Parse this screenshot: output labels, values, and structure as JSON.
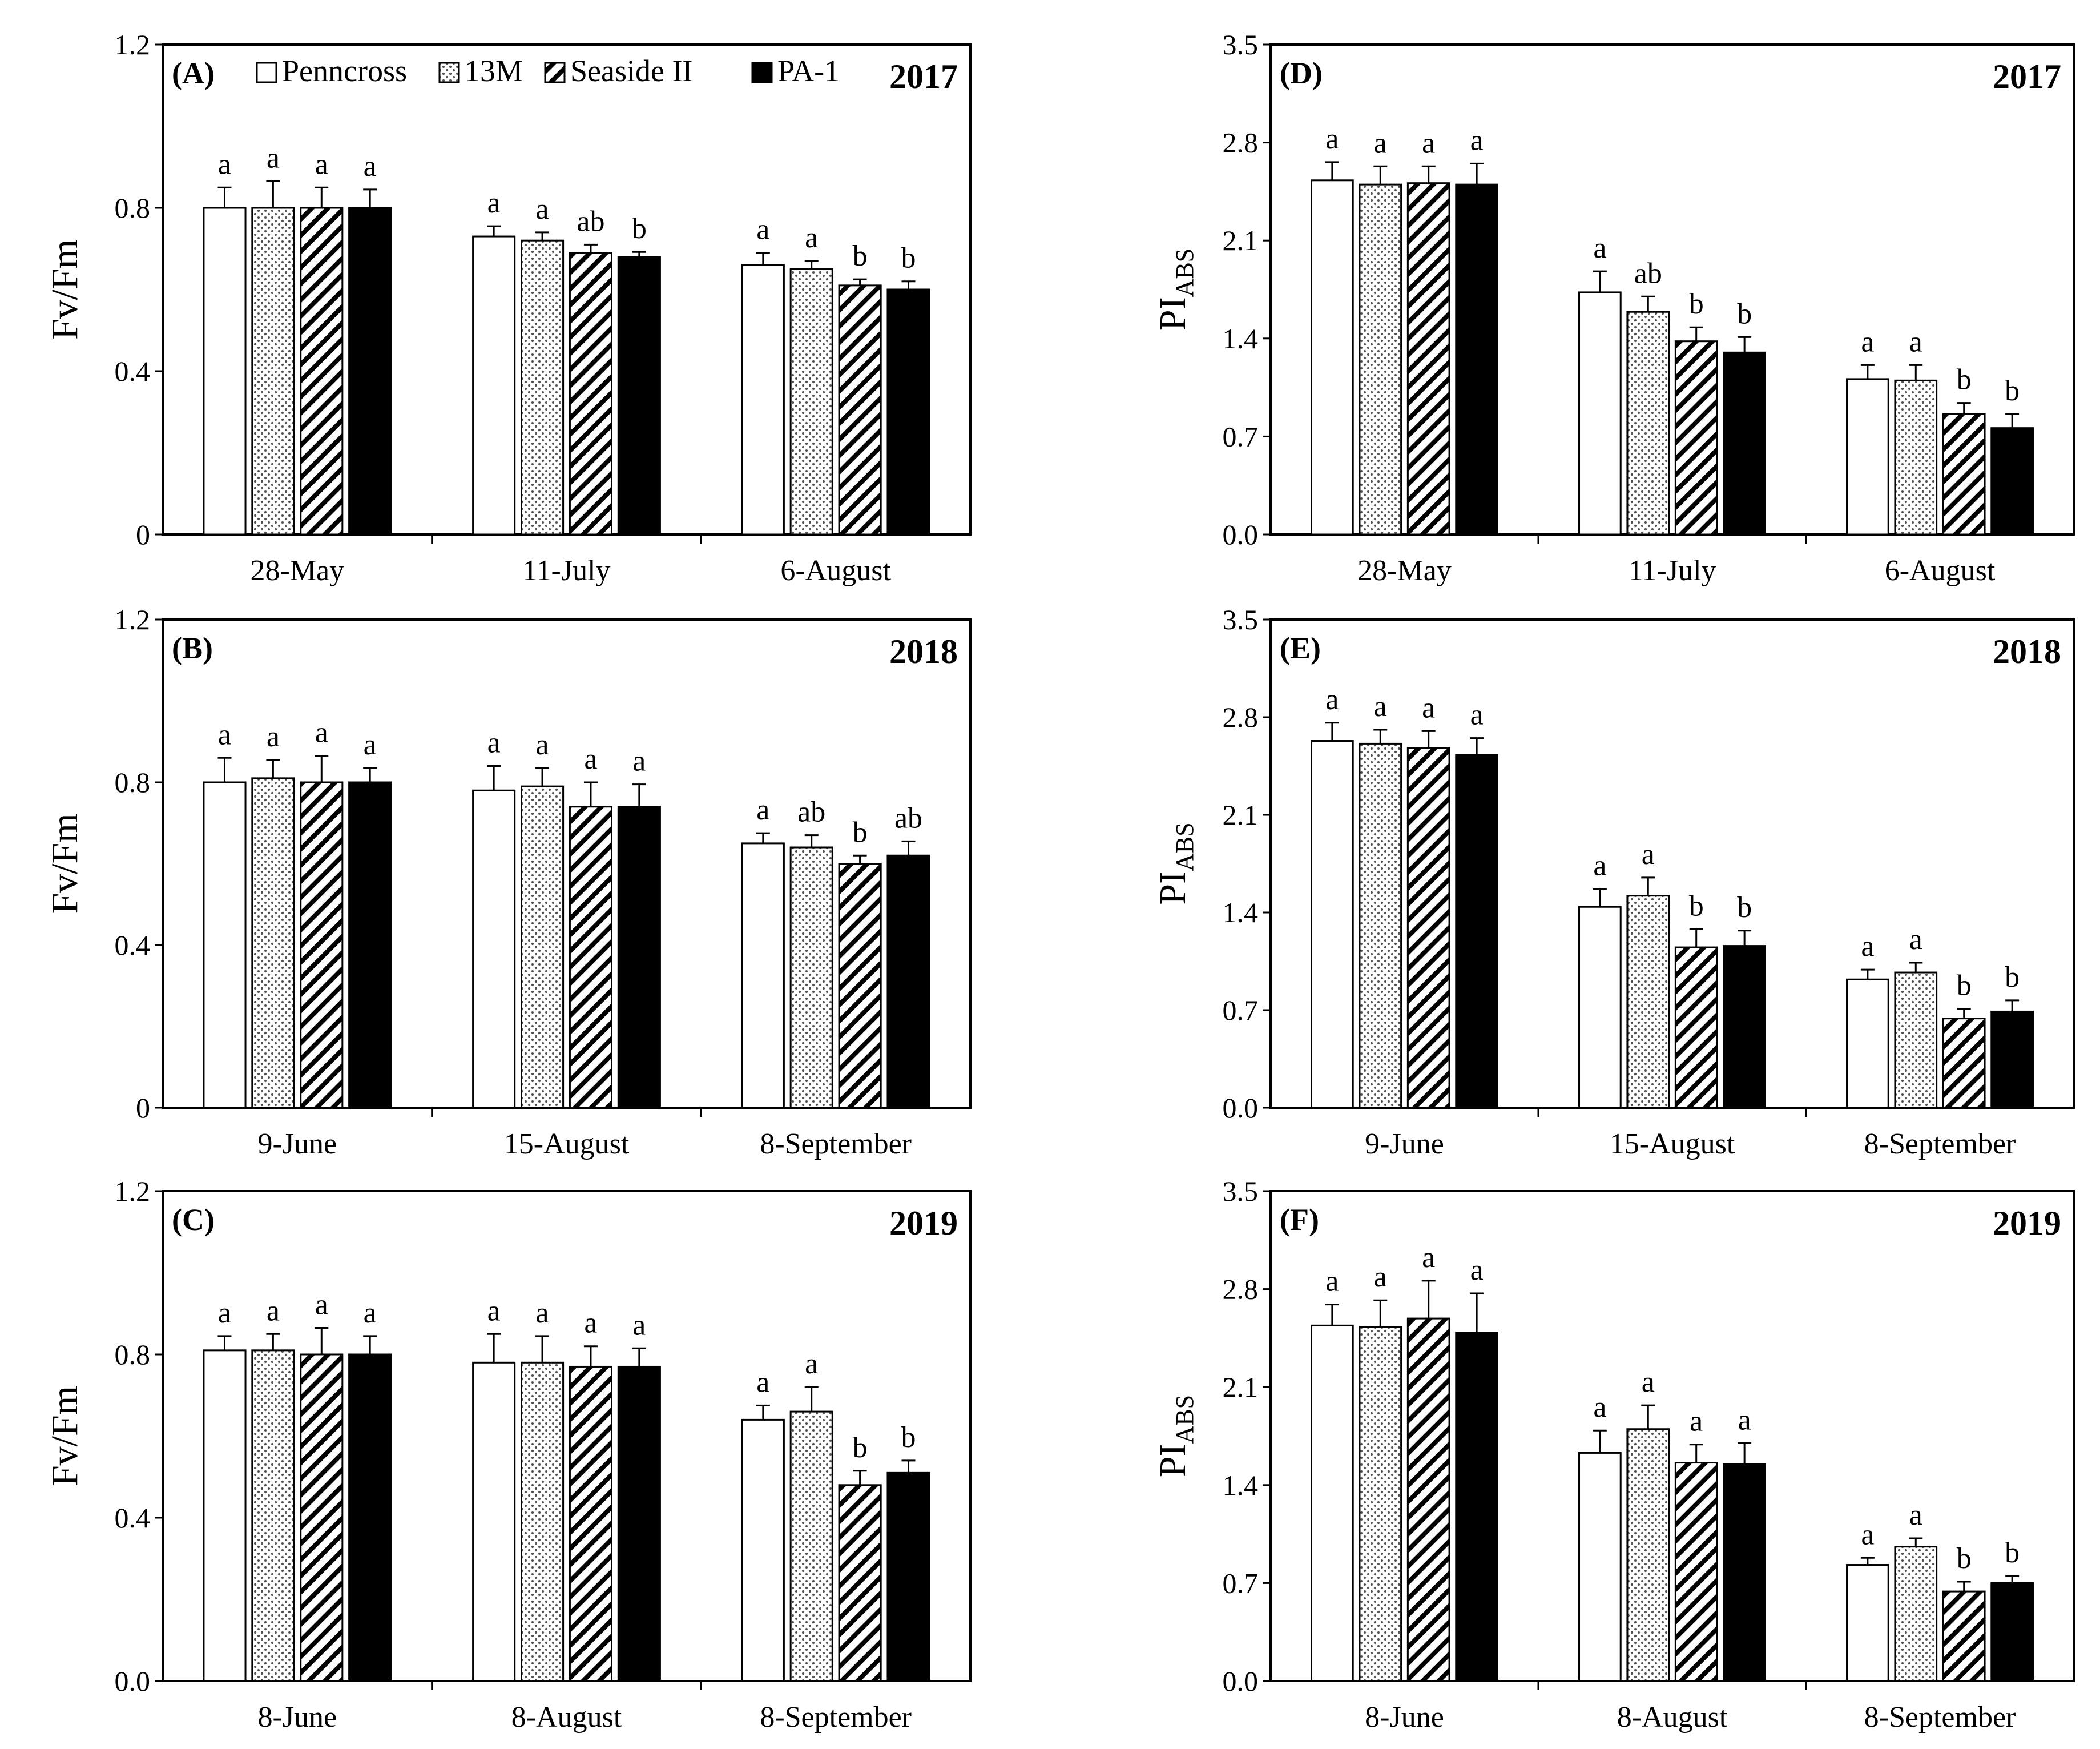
{
  "figure": {
    "series": [
      {
        "name": "Penncross",
        "pattern": "white"
      },
      {
        "name": "13M",
        "pattern": "dots"
      },
      {
        "name": "Seaside II",
        "pattern": "hatch"
      },
      {
        "name": "PA-1",
        "pattern": "black"
      }
    ]
  },
  "chart_data": [
    {
      "type": "bar",
      "panel_label": "(A)",
      "year": "2017",
      "legend": true,
      "ylabel_main": "Fv/Fm",
      "ylabel_sub": "",
      "ylim": [
        0,
        1.2
      ],
      "yticks": [
        "0",
        "0.4",
        "0.8",
        "1.2"
      ],
      "ytick_values": [
        0,
        0.4,
        0.8,
        1.2
      ],
      "categories": [
        "28-May",
        "11-July",
        "6-August"
      ],
      "series": [
        {
          "name": "Penncross",
          "values": [
            0.8,
            0.73,
            0.66
          ],
          "errors": [
            0.05,
            0.025,
            0.03
          ],
          "letters": [
            "a",
            "a",
            "a"
          ]
        },
        {
          "name": "13M",
          "values": [
            0.8,
            0.72,
            0.65
          ],
          "errors": [
            0.065,
            0.02,
            0.02
          ],
          "letters": [
            "a",
            "a",
            "a"
          ]
        },
        {
          "name": "Seaside II",
          "values": [
            0.8,
            0.69,
            0.61
          ],
          "errors": [
            0.05,
            0.02,
            0.015
          ],
          "letters": [
            "a",
            "ab",
            "b"
          ]
        },
        {
          "name": "PA-1",
          "values": [
            0.8,
            0.68,
            0.6
          ],
          "errors": [
            0.045,
            0.012,
            0.02
          ],
          "letters": [
            "a",
            "b",
            "b"
          ]
        }
      ]
    },
    {
      "type": "bar",
      "panel_label": "(B)",
      "year": "2018",
      "legend": false,
      "ylabel_main": "Fv/Fm",
      "ylabel_sub": "",
      "ylim": [
        0,
        1.2
      ],
      "yticks": [
        "0",
        "0.4",
        "0.8",
        "1.2"
      ],
      "ytick_values": [
        0,
        0.4,
        0.8,
        1.2
      ],
      "categories": [
        "9-June",
        "15-August",
        "8-September"
      ],
      "series": [
        {
          "name": "Penncross",
          "values": [
            0.8,
            0.78,
            0.65
          ],
          "errors": [
            0.06,
            0.06,
            0.025
          ],
          "letters": [
            "a",
            "a",
            "a"
          ]
        },
        {
          "name": "13M",
          "values": [
            0.81,
            0.79,
            0.64
          ],
          "errors": [
            0.045,
            0.045,
            0.03
          ],
          "letters": [
            "a",
            "a",
            "ab"
          ]
        },
        {
          "name": "Seaside II",
          "values": [
            0.8,
            0.74,
            0.6
          ],
          "errors": [
            0.065,
            0.06,
            0.02
          ],
          "letters": [
            "a",
            "a",
            "b"
          ]
        },
        {
          "name": "PA-1",
          "values": [
            0.8,
            0.74,
            0.62
          ],
          "errors": [
            0.035,
            0.055,
            0.035
          ],
          "letters": [
            "a",
            "a",
            "ab"
          ]
        }
      ]
    },
    {
      "type": "bar",
      "panel_label": "(C)",
      "year": "2019",
      "legend": false,
      "ylabel_main": "Fv/Fm",
      "ylabel_sub": "",
      "ylim": [
        0,
        1.2
      ],
      "yticks": [
        "0.0",
        "0.4",
        "0.8",
        "1.2"
      ],
      "ytick_values": [
        0,
        0.4,
        0.8,
        1.2
      ],
      "categories": [
        "8-June",
        "8-August",
        "8-September"
      ],
      "series": [
        {
          "name": "Penncross",
          "values": [
            0.81,
            0.78,
            0.64
          ],
          "errors": [
            0.035,
            0.07,
            0.035
          ],
          "letters": [
            "a",
            "a",
            "a"
          ]
        },
        {
          "name": "13M",
          "values": [
            0.81,
            0.78,
            0.66
          ],
          "errors": [
            0.04,
            0.065,
            0.06
          ],
          "letters": [
            "a",
            "a",
            "a"
          ]
        },
        {
          "name": "Seaside II",
          "values": [
            0.8,
            0.77,
            0.48
          ],
          "errors": [
            0.065,
            0.05,
            0.035
          ],
          "letters": [
            "a",
            "a",
            "b"
          ]
        },
        {
          "name": "PA-1",
          "values": [
            0.8,
            0.77,
            0.51
          ],
          "errors": [
            0.045,
            0.045,
            0.03
          ],
          "letters": [
            "a",
            "a",
            "b"
          ]
        }
      ]
    },
    {
      "type": "bar",
      "panel_label": "(D)",
      "year": "2017",
      "legend": false,
      "ylabel_main": "PI",
      "ylabel_sub": "ABS",
      "ylim": [
        0,
        3.5
      ],
      "yticks": [
        "0.0",
        "0.7",
        "1.4",
        "2.1",
        "2.8",
        "3.5"
      ],
      "ytick_values": [
        0,
        0.7,
        1.4,
        2.1,
        2.8,
        3.5
      ],
      "categories": [
        "28-May",
        "11-July",
        "6-August"
      ],
      "series": [
        {
          "name": "Penncross",
          "values": [
            2.53,
            1.73,
            1.11
          ],
          "errors": [
            0.13,
            0.15,
            0.1
          ],
          "letters": [
            "a",
            "a",
            "a"
          ]
        },
        {
          "name": "13M",
          "values": [
            2.5,
            1.59,
            1.1
          ],
          "errors": [
            0.13,
            0.11,
            0.11
          ],
          "letters": [
            "a",
            "ab",
            "a"
          ]
        },
        {
          "name": "Seaside II",
          "values": [
            2.51,
            1.38,
            0.86
          ],
          "errors": [
            0.12,
            0.1,
            0.08
          ],
          "letters": [
            "a",
            "b",
            "b"
          ]
        },
        {
          "name": "PA-1",
          "values": [
            2.5,
            1.3,
            0.76
          ],
          "errors": [
            0.15,
            0.11,
            0.1
          ],
          "letters": [
            "a",
            "b",
            "b"
          ]
        }
      ]
    },
    {
      "type": "bar",
      "panel_label": "(E)",
      "year": "2018",
      "legend": false,
      "ylabel_main": "PI",
      "ylabel_sub": "ABS",
      "ylim": [
        0,
        3.5
      ],
      "yticks": [
        "0.0",
        "0.7",
        "1.4",
        "2.1",
        "2.8",
        "3.5"
      ],
      "ytick_values": [
        0,
        0.7,
        1.4,
        2.1,
        2.8,
        3.5
      ],
      "categories": [
        "9-June",
        "15-August",
        "8-September"
      ],
      "series": [
        {
          "name": "Penncross",
          "values": [
            2.63,
            1.44,
            0.92
          ],
          "errors": [
            0.13,
            0.13,
            0.07
          ],
          "letters": [
            "a",
            "a",
            "a"
          ]
        },
        {
          "name": "13M",
          "values": [
            2.61,
            1.52,
            0.97
          ],
          "errors": [
            0.1,
            0.13,
            0.07
          ],
          "letters": [
            "a",
            "a",
            "a"
          ]
        },
        {
          "name": "Seaside II",
          "values": [
            2.58,
            1.15,
            0.64
          ],
          "errors": [
            0.12,
            0.13,
            0.07
          ],
          "letters": [
            "a",
            "b",
            "b"
          ]
        },
        {
          "name": "PA-1",
          "values": [
            2.53,
            1.16,
            0.69
          ],
          "errors": [
            0.12,
            0.11,
            0.08
          ],
          "letters": [
            "a",
            "b",
            "b"
          ]
        }
      ]
    },
    {
      "type": "bar",
      "panel_label": "(F)",
      "year": "2019",
      "legend": false,
      "ylabel_main": "PI",
      "ylabel_sub": "ABS",
      "ylim": [
        0,
        3.5
      ],
      "yticks": [
        "0.0",
        "0.7",
        "1.4",
        "2.1",
        "2.8",
        "3.5"
      ],
      "ytick_values": [
        0,
        0.7,
        1.4,
        2.1,
        2.8,
        3.5
      ],
      "categories": [
        "8-June",
        "8-August",
        "8-September"
      ],
      "series": [
        {
          "name": "Penncross",
          "values": [
            2.54,
            1.63,
            0.83
          ],
          "errors": [
            0.15,
            0.16,
            0.05
          ],
          "letters": [
            "a",
            "a",
            "a"
          ]
        },
        {
          "name": "13M",
          "values": [
            2.53,
            1.8,
            0.96
          ],
          "errors": [
            0.19,
            0.17,
            0.06
          ],
          "letters": [
            "a",
            "a",
            "a"
          ]
        },
        {
          "name": "Seaside II",
          "values": [
            2.59,
            1.56,
            0.64
          ],
          "errors": [
            0.27,
            0.13,
            0.07
          ],
          "letters": [
            "a",
            "a",
            "b"
          ]
        },
        {
          "name": "PA-1",
          "values": [
            2.49,
            1.55,
            0.7
          ],
          "errors": [
            0.28,
            0.15,
            0.05
          ],
          "letters": [
            "a",
            "a",
            "b"
          ]
        }
      ]
    }
  ]
}
